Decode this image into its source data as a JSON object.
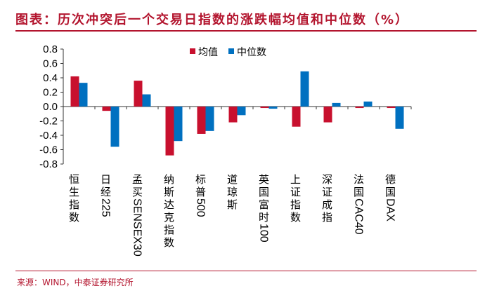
{
  "title": "图表：历次冲突后一个交易日指数的涨跌幅均值和中位数（%）",
  "source": "来源：WIND，中泰证券研究所",
  "chart_data": {
    "type": "bar",
    "categories": [
      "恒生指数",
      "日经225",
      "孟买SENSEX30",
      "纳斯达克指数",
      "标普500",
      "道琼斯",
      "英国富时100",
      "上证指数",
      "深证成指",
      "法国CAC40",
      "德国DAX"
    ],
    "series": [
      {
        "name": "均值",
        "color": "#c8102e",
        "values": [
          0.42,
          -0.06,
          0.36,
          -0.68,
          -0.38,
          -0.22,
          -0.02,
          -0.28,
          -0.22,
          -0.02,
          -0.02
        ]
      },
      {
        "name": "中位数",
        "color": "#0070c0",
        "values": [
          0.33,
          -0.56,
          0.17,
          -0.48,
          -0.34,
          -0.12,
          -0.03,
          0.49,
          0.05,
          0.07,
          -0.31
        ]
      }
    ],
    "ylim": [
      -0.8,
      0.8
    ],
    "yticks": [
      0.8,
      0.6,
      0.4,
      0.2,
      0.0,
      -0.2,
      -0.4,
      -0.6,
      -0.8
    ],
    "ytick_labels": [
      "0.8",
      "0.6",
      "0.4",
      "0.2",
      "0.0",
      "-0.2",
      "-0.4",
      "-0.6",
      "-0.8"
    ],
    "legend_position": "top-center",
    "grid": false
  }
}
